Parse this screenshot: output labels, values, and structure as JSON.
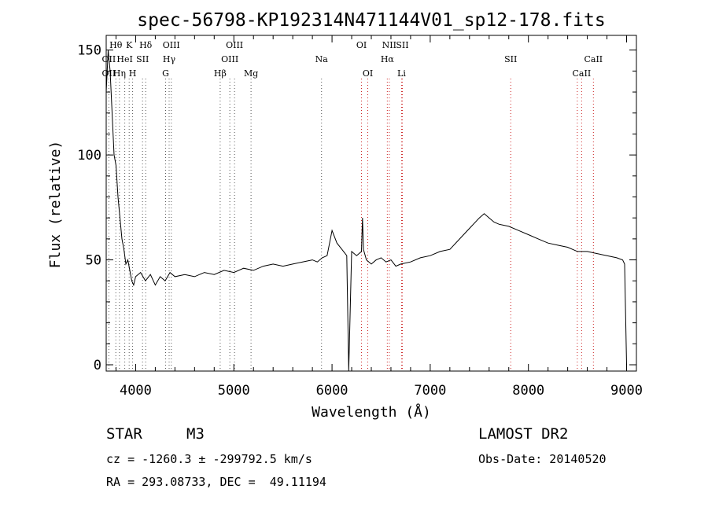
{
  "chart_data": {
    "type": "line",
    "title": "spec-56798-KP192314N471144V01_sp12-178.fits",
    "xlabel": "Wavelength (Å)",
    "ylabel": "Flux (relative)",
    "xlim": [
      3700,
      9100
    ],
    "ylim": [
      -3,
      157
    ],
    "xticks": [
      4000,
      5000,
      6000,
      7000,
      8000,
      9000
    ],
    "yticks": [
      0,
      50,
      100,
      150
    ],
    "grid": false,
    "series": [
      {
        "color": "#000000",
        "x": [
          3700,
          3720,
          3740,
          3760,
          3780,
          3800,
          3820,
          3840,
          3860,
          3880,
          3900,
          3920,
          3940,
          3960,
          3980,
          4000,
          4050,
          4100,
          4150,
          4200,
          4250,
          4300,
          4350,
          4400,
          4500,
          4600,
          4700,
          4800,
          4900,
          5000,
          5100,
          5200,
          5300,
          5400,
          5500,
          5600,
          5700,
          5800,
          5850,
          5900,
          5950,
          6000,
          6050,
          6100,
          6150,
          6170,
          6200,
          6250,
          6300,
          6310,
          6320,
          6350,
          6400,
          6450,
          6500,
          6550,
          6600,
          6650,
          6700,
          6800,
          6900,
          7000,
          7100,
          7200,
          7300,
          7400,
          7500,
          7550,
          7600,
          7650,
          7700,
          7800,
          7900,
          8000,
          8100,
          8200,
          8300,
          8400,
          8500,
          8600,
          8700,
          8800,
          8900,
          8960,
          8980,
          9000
        ],
        "y": [
          130,
          150,
          140,
          120,
          100,
          95,
          80,
          70,
          60,
          55,
          48,
          50,
          45,
          40,
          38,
          42,
          44,
          40,
          43,
          38,
          42,
          40,
          44,
          42,
          43,
          42,
          44,
          43,
          45,
          44,
          46,
          45,
          47,
          48,
          47,
          48,
          49,
          50,
          49,
          51,
          52,
          64,
          58,
          55,
          52,
          -3,
          54,
          52,
          54,
          70,
          55,
          50,
          48,
          50,
          51,
          49,
          50,
          47,
          48,
          49,
          51,
          52,
          54,
          55,
          60,
          65,
          70,
          72,
          70,
          68,
          67,
          66,
          64,
          62,
          60,
          58,
          57,
          56,
          54,
          54,
          53,
          52,
          51,
          50,
          48,
          0
        ]
      }
    ]
  },
  "emission_lines": [
    {
      "label": "Hθ",
      "wl": 3798,
      "row": 0,
      "color": "#555555"
    },
    {
      "label": "OII",
      "wl": 3727,
      "row": 1,
      "color": "#555555"
    },
    {
      "label": "OII",
      "wl": 3727,
      "row": 2,
      "color": "#555555"
    },
    {
      "label": "Hη",
      "wl": 3835,
      "row": 2,
      "color": "#555555"
    },
    {
      "label": "K",
      "wl": 3934,
      "row": 0,
      "color": "#555555"
    },
    {
      "label": "HeI",
      "wl": 3889,
      "row": 1,
      "color": "#555555"
    },
    {
      "label": "SII",
      "wl": 4070,
      "row": 1,
      "color": "#555555"
    },
    {
      "label": "H",
      "wl": 3969,
      "row": 2,
      "color": "#555555"
    },
    {
      "label": "Hδ",
      "wl": 4102,
      "row": 0,
      "color": "#555555"
    },
    {
      "label": "OIII",
      "wl": 4363,
      "row": 0,
      "color": "#555555"
    },
    {
      "label": "Hγ",
      "wl": 4341,
      "row": 1,
      "color": "#555555"
    },
    {
      "label": "G",
      "wl": 4305,
      "row": 2,
      "color": "#555555"
    },
    {
      "label": "OIII",
      "wl": 5007,
      "row": 0,
      "color": "#555555"
    },
    {
      "label": "OIII",
      "wl": 4959,
      "row": 1,
      "color": "#555555"
    },
    {
      "label": "Hβ",
      "wl": 4861,
      "row": 2,
      "color": "#555555"
    },
    {
      "label": "Mg",
      "wl": 5175,
      "row": 2,
      "color": "#555555"
    },
    {
      "label": "Na",
      "wl": 5893,
      "row": 1,
      "color": "#555555"
    },
    {
      "label": "OI",
      "wl": 6300,
      "row": 0,
      "color": "#cc2222"
    },
    {
      "label": "OI",
      "wl": 6364,
      "row": 2,
      "color": "#cc2222"
    },
    {
      "label": "NII",
      "wl": 6583,
      "row": 0,
      "color": "#cc2222"
    },
    {
      "label": "SII",
      "wl": 6716,
      "row": 0,
      "color": "#cc2222"
    },
    {
      "label": "Hα",
      "wl": 6563,
      "row": 1,
      "color": "#cc2222"
    },
    {
      "label": "Li",
      "wl": 6708,
      "row": 2,
      "color": "#cc2222"
    },
    {
      "label": "SII",
      "wl": 7820,
      "row": 1,
      "color": "#cc2222"
    },
    {
      "label": "CaII",
      "wl": 8662,
      "row": 1,
      "color": "#cc2222"
    },
    {
      "label": "CaII",
      "wl": 8542,
      "row": 2,
      "color": "#cc2222"
    },
    {
      "label": "",
      "wl": 8498,
      "row": 2,
      "color": "#cc2222"
    }
  ],
  "info": {
    "object_class": "STAR",
    "subclass": "M3",
    "survey": "LAMOST DR2",
    "velocity": "cz = -1260.3 ± -299792.5 km/s",
    "obs_date": "Obs-Date: 20140520",
    "coords": "RA = 293.08733, DEC =  49.11194"
  }
}
